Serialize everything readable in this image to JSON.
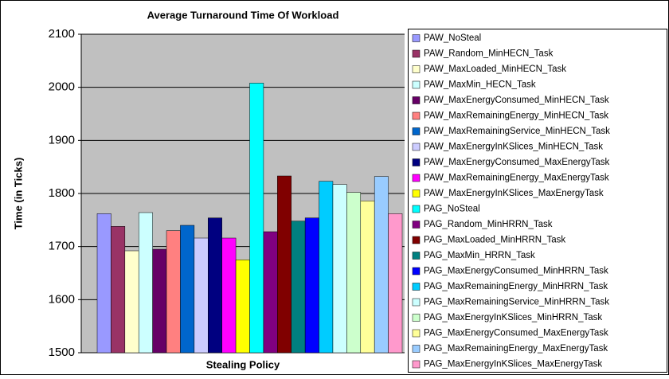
{
  "chart_data": {
    "type": "bar",
    "title": "Average Turnaround Time Of Workload",
    "x_label": "Stealing Policy",
    "y_label": "Time (in Ticks)",
    "ylim": [
      1500,
      2100
    ],
    "yticks": [
      1500,
      1600,
      1700,
      1800,
      1900,
      2000,
      2100
    ],
    "grid": true,
    "legend": "right",
    "series": [
      {
        "name": "PAW_NoSteal",
        "color": "#9999FF",
        "values": [
          1762
        ]
      },
      {
        "name": "PAW_Random_MinHECN_Task",
        "color": "#993366",
        "values": [
          1738
        ]
      },
      {
        "name": "PAW_MaxLoaded_MinHECN_Task",
        "color": "#FFFFCC",
        "values": [
          1692
        ]
      },
      {
        "name": "PAW_MaxMin_HECN_Task",
        "color": "#CCFFFF",
        "values": [
          1764
        ]
      },
      {
        "name": "PAW_MaxEnergyConsumed_MinHECN_Task",
        "color": "#660066",
        "values": [
          1695
        ]
      },
      {
        "name": "PAW_MaxRemainingEnergy_MinHECN_Task",
        "color": "#FF8080",
        "values": [
          1730
        ]
      },
      {
        "name": "PAW_MaxRemainingService_MinHECN_Task",
        "color": "#0066CC",
        "values": [
          1740
        ]
      },
      {
        "name": "PAW_MaxEnergyInKSlices_MinHECN_Task",
        "color": "#CCCCFF",
        "values": [
          1716
        ]
      },
      {
        "name": "PAW_MaxEnergyConsumed_MaxEnergyTask",
        "color": "#000080",
        "values": [
          1754
        ]
      },
      {
        "name": "PAW_MaxRemainingEnergy_MaxEnergyTask",
        "color": "#FF00FF",
        "values": [
          1716
        ]
      },
      {
        "name": "PAW_MaxEnergyInKSlices_MaxEnergyTask",
        "color": "#FFFF00",
        "values": [
          1675
        ]
      },
      {
        "name": "PAG_NoSteal",
        "color": "#00FFFF",
        "values": [
          2008
        ]
      },
      {
        "name": "PAG_Random_MinHRRN_Task",
        "color": "#800080",
        "values": [
          1728
        ]
      },
      {
        "name": "PAG_MaxLoaded_MinHRRN_Task",
        "color": "#800000",
        "values": [
          1833
        ]
      },
      {
        "name": "PAG_MaxMin_HRRN_Task",
        "color": "#008080",
        "values": [
          1748
        ]
      },
      {
        "name": "PAG_MaxEnergyConsumed_MinHRRN_Task",
        "color": "#0000FF",
        "values": [
          1754
        ]
      },
      {
        "name": "PAG_MaxRemainingEnergy_MinHRRN_Task",
        "color": "#00CCFF",
        "values": [
          1823
        ]
      },
      {
        "name": "PAG_MaxRemainingService_MinHRRN_Task",
        "color": "#CCFFFF",
        "values": [
          1817
        ]
      },
      {
        "name": "PAG_MaxEnergyInKSlices_MinHRRN_Task",
        "color": "#CCFFCC",
        "values": [
          1802
        ]
      },
      {
        "name": "PAG_MaxEnergyConsumed_MaxEnergyTask",
        "color": "#FFFF99",
        "values": [
          1786
        ]
      },
      {
        "name": "PAG_MaxRemainingEnergy_MaxEnergyTask",
        "color": "#99CCFF",
        "values": [
          1832
        ]
      },
      {
        "name": "PAG_MaxEnergyInKSlices_MaxEnergyTask",
        "color": "#FF99CC",
        "values": [
          1762
        ]
      }
    ]
  }
}
